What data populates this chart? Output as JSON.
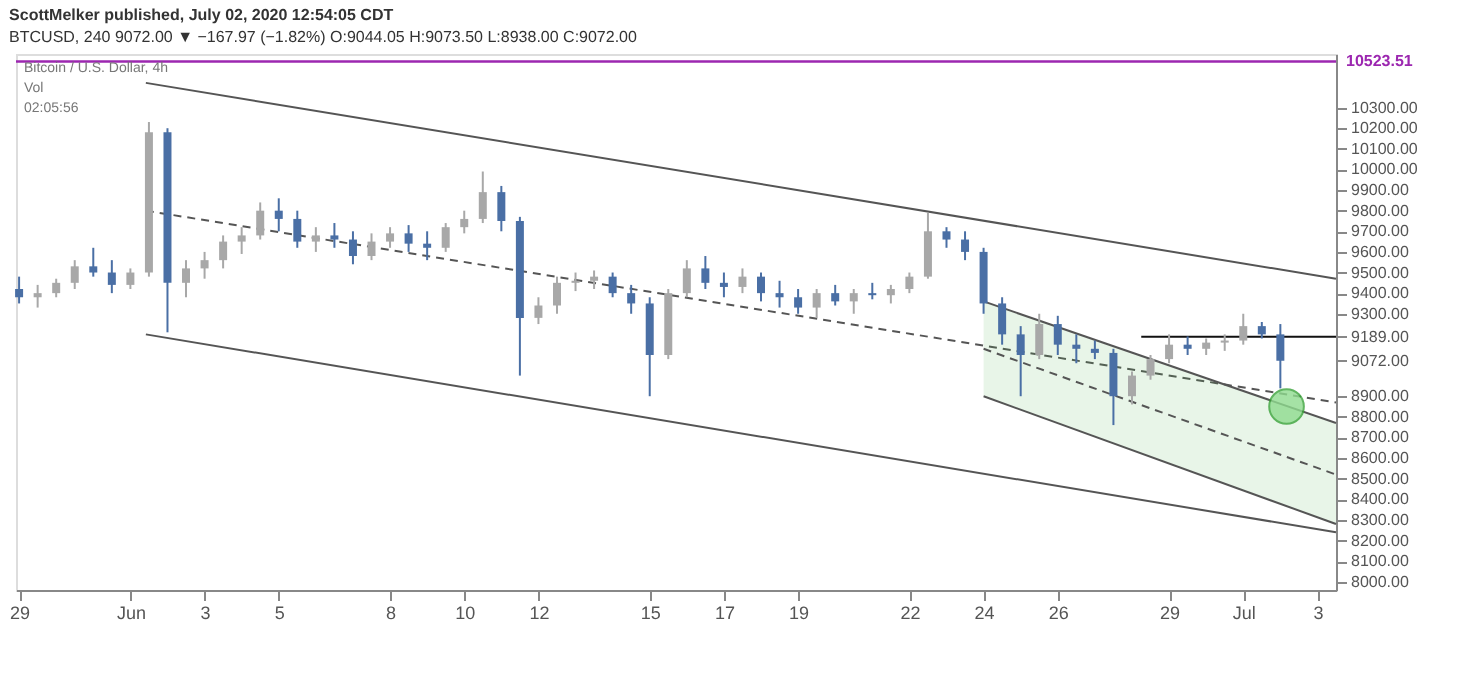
{
  "chart_data": {
    "type": "candlestick",
    "title": "ScottMelker published, July 02, 2020 12:54:05 CDT",
    "subtitle": "BTCUSD, 240 9072.00 ▼ −167.97 (−1.82%) O:9044.05 H:9073.50 L:8938.00 C:9072.00",
    "x": [
      "2020-05-29T00:00",
      "2020-05-29T12:00",
      "2020-05-30T00:00",
      "2020-05-30T12:00",
      "2020-05-31T00:00",
      "2020-05-31T12:00",
      "2020-06-01T00:00",
      "2020-06-01T12:00",
      "2020-06-02T00:00",
      "2020-06-02T12:00",
      "2020-06-03T00:00",
      "2020-06-03T12:00",
      "2020-06-04T00:00",
      "2020-06-04T12:00",
      "2020-06-05T00:00",
      "2020-06-05T12:00",
      "2020-06-06T00:00",
      "2020-06-06T12:00",
      "2020-06-07T00:00",
      "2020-06-07T12:00",
      "2020-06-08T00:00",
      "2020-06-08T12:00",
      "2020-06-09T00:00",
      "2020-06-09T12:00",
      "2020-06-10T00:00",
      "2020-06-10T12:00",
      "2020-06-11T00:00",
      "2020-06-11T12:00",
      "2020-06-12T00:00",
      "2020-06-12T12:00",
      "2020-06-13T00:00",
      "2020-06-13T12:00",
      "2020-06-14T00:00",
      "2020-06-14T12:00",
      "2020-06-15T00:00",
      "2020-06-15T12:00",
      "2020-06-16T00:00",
      "2020-06-16T12:00",
      "2020-06-17T00:00",
      "2020-06-17T12:00",
      "2020-06-18T00:00",
      "2020-06-18T12:00",
      "2020-06-19T00:00",
      "2020-06-19T12:00",
      "2020-06-20T00:00",
      "2020-06-20T12:00",
      "2020-06-21T00:00",
      "2020-06-21T12:00",
      "2020-06-22T00:00",
      "2020-06-22T12:00",
      "2020-06-23T00:00",
      "2020-06-23T12:00",
      "2020-06-24T00:00",
      "2020-06-24T12:00",
      "2020-06-25T00:00",
      "2020-06-25T12:00",
      "2020-06-26T00:00",
      "2020-06-26T12:00",
      "2020-06-27T00:00",
      "2020-06-27T12:00",
      "2020-06-28T00:00",
      "2020-06-28T12:00",
      "2020-06-29T00:00",
      "2020-06-29T12:00",
      "2020-06-30T00:00",
      "2020-06-30T12:00",
      "2020-07-01T00:00",
      "2020-07-01T12:00",
      "2020-07-02T00:00"
    ],
    "ohlc": [
      [
        9420,
        9480,
        9350,
        9380
      ],
      [
        9380,
        9440,
        9330,
        9400
      ],
      [
        9400,
        9470,
        9380,
        9450
      ],
      [
        9450,
        9560,
        9420,
        9530
      ],
      [
        9530,
        9620,
        9480,
        9500
      ],
      [
        9500,
        9560,
        9400,
        9440
      ],
      [
        9440,
        9520,
        9420,
        9500
      ],
      [
        9500,
        10230,
        9480,
        10180
      ],
      [
        10180,
        10200,
        9210,
        9450
      ],
      [
        9450,
        9560,
        9380,
        9520
      ],
      [
        9520,
        9600,
        9470,
        9560
      ],
      [
        9560,
        9680,
        9520,
        9650
      ],
      [
        9650,
        9720,
        9590,
        9680
      ],
      [
        9680,
        9840,
        9660,
        9800
      ],
      [
        9800,
        9860,
        9700,
        9760
      ],
      [
        9760,
        9800,
        9620,
        9650
      ],
      [
        9650,
        9720,
        9600,
        9680
      ],
      [
        9680,
        9740,
        9620,
        9660
      ],
      [
        9660,
        9700,
        9540,
        9580
      ],
      [
        9580,
        9690,
        9560,
        9650
      ],
      [
        9650,
        9720,
        9620,
        9690
      ],
      [
        9690,
        9730,
        9600,
        9640
      ],
      [
        9640,
        9700,
        9560,
        9620
      ],
      [
        9620,
        9740,
        9600,
        9720
      ],
      [
        9720,
        9800,
        9690,
        9760
      ],
      [
        9760,
        9990,
        9740,
        9890
      ],
      [
        9890,
        9920,
        9700,
        9750
      ],
      [
        9750,
        9770,
        9000,
        9280
      ],
      [
        9280,
        9380,
        9250,
        9340
      ],
      [
        9340,
        9480,
        9300,
        9450
      ],
      [
        9450,
        9500,
        9410,
        9460
      ],
      [
        9460,
        9510,
        9420,
        9480
      ],
      [
        9480,
        9500,
        9380,
        9400
      ],
      [
        9400,
        9440,
        9300,
        9350
      ],
      [
        9350,
        9380,
        8900,
        9100
      ],
      [
        9100,
        9420,
        9080,
        9400
      ],
      [
        9400,
        9560,
        9380,
        9520
      ],
      [
        9520,
        9580,
        9420,
        9450
      ],
      [
        9450,
        9500,
        9380,
        9430
      ],
      [
        9430,
        9520,
        9400,
        9480
      ],
      [
        9480,
        9500,
        9360,
        9400
      ],
      [
        9400,
        9460,
        9330,
        9380
      ],
      [
        9380,
        9420,
        9300,
        9330
      ],
      [
        9330,
        9420,
        9280,
        9400
      ],
      [
        9400,
        9440,
        9340,
        9360
      ],
      [
        9360,
        9420,
        9300,
        9400
      ],
      [
        9400,
        9450,
        9370,
        9390
      ],
      [
        9390,
        9440,
        9350,
        9420
      ],
      [
        9420,
        9500,
        9400,
        9480
      ],
      [
        9480,
        9790,
        9470,
        9700
      ],
      [
        9700,
        9720,
        9620,
        9660
      ],
      [
        9660,
        9700,
        9560,
        9600
      ],
      [
        9600,
        9620,
        9300,
        9350
      ],
      [
        9350,
        9380,
        9150,
        9200
      ],
      [
        9200,
        9240,
        8900,
        9100
      ],
      [
        9100,
        9300,
        9080,
        9250
      ],
      [
        9250,
        9290,
        9100,
        9150
      ],
      [
        9150,
        9200,
        9060,
        9130
      ],
      [
        9130,
        9170,
        9080,
        9110
      ],
      [
        9110,
        9130,
        8760,
        8900
      ],
      [
        8900,
        9020,
        8860,
        9000
      ],
      [
        9000,
        9100,
        8980,
        9080
      ],
      [
        9080,
        9200,
        9060,
        9150
      ],
      [
        9150,
        9190,
        9100,
        9130
      ],
      [
        9130,
        9180,
        9100,
        9160
      ],
      [
        9160,
        9200,
        9120,
        9170
      ],
      [
        9170,
        9300,
        9150,
        9240
      ],
      [
        9240,
        9260,
        9180,
        9200
      ],
      [
        9200,
        9250,
        8938,
        9072
      ]
    ],
    "colors": [
      "#4a6fa5",
      "#a8a8a8",
      "#a8a8a8",
      "#a8a8a8",
      "#4a6fa5",
      "#4a6fa5",
      "#a8a8a8",
      "#a8a8a8",
      "#4a6fa5",
      "#a8a8a8",
      "#a8a8a8",
      "#a8a8a8",
      "#a8a8a8",
      "#a8a8a8",
      "#4a6fa5",
      "#4a6fa5",
      "#a8a8a8",
      "#4a6fa5",
      "#4a6fa5",
      "#a8a8a8",
      "#a8a8a8",
      "#4a6fa5",
      "#4a6fa5",
      "#a8a8a8",
      "#a8a8a8",
      "#a8a8a8",
      "#4a6fa5",
      "#4a6fa5",
      "#a8a8a8",
      "#a8a8a8",
      "#a8a8a8",
      "#a8a8a8",
      "#4a6fa5",
      "#4a6fa5",
      "#4a6fa5",
      "#a8a8a8",
      "#a8a8a8",
      "#4a6fa5",
      "#4a6fa5",
      "#a8a8a8",
      "#4a6fa5",
      "#4a6fa5",
      "#4a6fa5",
      "#a8a8a8",
      "#4a6fa5",
      "#a8a8a8",
      "#4a6fa5",
      "#a8a8a8",
      "#a8a8a8",
      "#a8a8a8",
      "#4a6fa5",
      "#4a6fa5",
      "#4a6fa5",
      "#4a6fa5",
      "#4a6fa5",
      "#a8a8a8",
      "#4a6fa5",
      "#4a6fa5",
      "#4a6fa5",
      "#4a6fa5",
      "#a8a8a8",
      "#a8a8a8",
      "#a8a8a8",
      "#4a6fa5",
      "#a8a8a8",
      "#a8a8a8",
      "#a8a8a8",
      "#4a6fa5",
      "#4a6fa5"
    ],
    "series": [
      {
        "type": "line",
        "color": "#555555",
        "line_style": "solid",
        "x": [
          "2020-06-01T10:00",
          "2020-07-03T12:00"
        ],
        "values": [
          10420,
          9470
        ]
      },
      {
        "type": "line",
        "color": "#555555",
        "line_style": "solid",
        "x": [
          "2020-06-01T10:00",
          "2020-07-03T12:00"
        ],
        "values": [
          9200,
          8240
        ]
      },
      {
        "type": "line",
        "color": "#555555",
        "line_style": "dashed",
        "x": [
          "2020-06-01T10:00",
          "2020-07-03T12:00"
        ],
        "values": [
          9800,
          8870
        ]
      },
      {
        "type": "line",
        "color": "#555555",
        "line_style": "dashed",
        "x": [
          "2020-06-24T00:00",
          "2020-07-03T12:00"
        ],
        "values": [
          9130,
          8520
        ],
        "lower": [
          8900,
          8280
        ],
        "upper": [
          9360,
          8770
        ]
      },
      {
        "type": "line",
        "color": "#555555",
        "line_style": "solid",
        "x": [
          "2020-06-24T00:00",
          "2020-07-03T12:00"
        ],
        "values": [
          9360,
          8770
        ]
      },
      {
        "type": "line",
        "color": "#555555",
        "line_style": "solid",
        "x": [
          "2020-06-24T00:00",
          "2020-07-03T12:00"
        ],
        "values": [
          8900,
          8280
        ]
      },
      {
        "type": "line",
        "color": "#111111",
        "line_style": "solid",
        "x": [
          "2020-06-28T06:00",
          "2020-07-03T12:00"
        ],
        "values": [
          9189,
          9189
        ]
      },
      {
        "type": "scatter",
        "color": "#8fdc8f",
        "marker": "circle",
        "x": [
          "2020-07-02T04:00"
        ],
        "values": [
          8850
        ]
      }
    ],
    "ref_lines": [
      {
        "axis": "y",
        "value": 10523.51,
        "label": "10523.51",
        "color": "#9c27b0"
      }
    ],
    "annotations": [
      "Bitcoin / U.S. Dollar, 4h",
      "Vol",
      "02:05:56"
    ],
    "xlim": [
      "2020-05-28T22:00",
      "2020-07-03T12:00"
    ],
    "xticks": [
      {
        "value": "2020-05-29T00:00",
        "label": "29"
      },
      {
        "value": "2020-06-01T00:00",
        "label": "Jun"
      },
      {
        "value": "2020-06-03T00:00",
        "label": "3"
      },
      {
        "value": "2020-06-05T00:00",
        "label": "5"
      },
      {
        "value": "2020-06-08T00:00",
        "label": "8"
      },
      {
        "value": "2020-06-10T00:00",
        "label": "10"
      },
      {
        "value": "2020-06-12T00:00",
        "label": "12"
      },
      {
        "value": "2020-06-15T00:00",
        "label": "15"
      },
      {
        "value": "2020-06-17T00:00",
        "label": "17"
      },
      {
        "value": "2020-06-19T00:00",
        "label": "19"
      },
      {
        "value": "2020-06-22T00:00",
        "label": "22"
      },
      {
        "value": "2020-06-24T00:00",
        "label": "24"
      },
      {
        "value": "2020-06-26T00:00",
        "label": "26"
      },
      {
        "value": "2020-06-29T00:00",
        "label": "29"
      },
      {
        "value": "2020-07-01T00:00",
        "label": "Jul"
      },
      {
        "value": "2020-07-03T00:00",
        "label": "3"
      }
    ],
    "ylim": [
      7960,
      10560
    ],
    "yticks": [
      {
        "value": 8000,
        "label": "8000.00"
      },
      {
        "value": 8100,
        "label": "8100.00"
      },
      {
        "value": 8200,
        "label": "8200.00"
      },
      {
        "value": 8300,
        "label": "8300.00"
      },
      {
        "value": 8400,
        "label": "8400.00"
      },
      {
        "value": 8500,
        "label": "8500.00"
      },
      {
        "value": 8600,
        "label": "8600.00"
      },
      {
        "value": 8700,
        "label": "8700.00"
      },
      {
        "value": 8800,
        "label": "8800.00"
      },
      {
        "value": 8900,
        "label": "8900.00"
      },
      {
        "value": 9072,
        "label": "9072.00"
      },
      {
        "value": 9189,
        "label": "9189.00"
      },
      {
        "value": 9300,
        "label": "9300.00"
      },
      {
        "value": 9400,
        "label": "9400.00"
      },
      {
        "value": 9500,
        "label": "9500.00"
      },
      {
        "value": 9600,
        "label": "9600.00"
      },
      {
        "value": 9700,
        "label": "9700.00"
      },
      {
        "value": 9800,
        "label": "9800.00"
      },
      {
        "value": 9900,
        "label": "9900.00"
      },
      {
        "value": 10000,
        "label": "10000.00"
      },
      {
        "value": 10100,
        "label": "10100.00"
      },
      {
        "value": 10200,
        "label": "10200.00"
      },
      {
        "value": 10300,
        "label": "10300.00"
      }
    ],
    "grid": false
  }
}
